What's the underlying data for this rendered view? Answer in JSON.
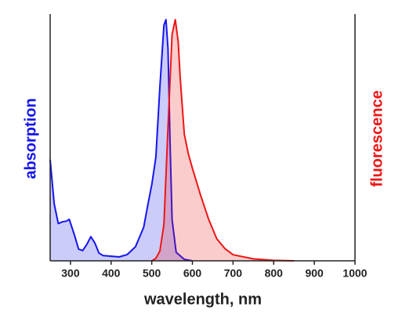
{
  "chart_data": {
    "type": "line",
    "x_label": "wavelength, nm",
    "xlim": [
      250,
      1000
    ],
    "xticks": [
      300,
      400,
      500,
      600,
      700,
      800,
      900,
      1000
    ],
    "ylim": [
      0,
      1
    ],
    "filled": true,
    "series": [
      {
        "name": "absorption",
        "color": "#1515ee",
        "axis": "y",
        "x": [
          250,
          260,
          270,
          280,
          290,
          297,
          310,
          320,
          330,
          340,
          350,
          360,
          370,
          380,
          400,
          420,
          440,
          460,
          480,
          490,
          500,
          510,
          520,
          530,
          535,
          540,
          545,
          550,
          560,
          580,
          600
        ],
        "values": [
          0.415,
          0.233,
          0.153,
          0.16,
          0.163,
          0.17,
          0.105,
          0.048,
          0.042,
          0.067,
          0.099,
          0.073,
          0.032,
          0.022,
          0.019,
          0.016,
          0.026,
          0.058,
          0.137,
          0.227,
          0.313,
          0.425,
          0.712,
          0.968,
          0.99,
          0.872,
          0.489,
          0.169,
          0.035,
          0.006,
          0
        ]
      },
      {
        "name": "fluorescence",
        "color": "#ee1515",
        "axis": "y2",
        "x": [
          500,
          510,
          520,
          530,
          540,
          550,
          558,
          565,
          570,
          580,
          590,
          600,
          620,
          640,
          660,
          680,
          700,
          750,
          800,
          850
        ],
        "values": [
          0,
          0.01,
          0.04,
          0.15,
          0.55,
          0.93,
          0.99,
          0.9,
          0.75,
          0.52,
          0.44,
          0.38,
          0.27,
          0.17,
          0.09,
          0.05,
          0.025,
          0.008,
          0.002,
          0
        ]
      }
    ]
  }
}
